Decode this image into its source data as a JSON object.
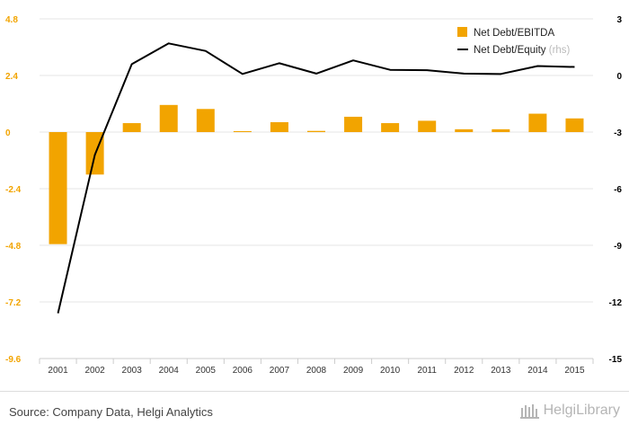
{
  "chart_data": {
    "type": "bar+line",
    "categories": [
      "2001",
      "2002",
      "2003",
      "2004",
      "2005",
      "2006",
      "2007",
      "2008",
      "2009",
      "2010",
      "2011",
      "2012",
      "2013",
      "2014",
      "2015"
    ],
    "series": [
      {
        "name": "Net Debt/EBITDA",
        "type": "bar",
        "axis": "left",
        "color": "#F2A400",
        "values": [
          -4.75,
          -1.8,
          0.38,
          1.15,
          0.98,
          0.04,
          0.42,
          0.05,
          0.65,
          0.38,
          0.48,
          0.12,
          0.12,
          0.78,
          0.58
        ]
      },
      {
        "name": "Net Debt/Equity",
        "legend_suffix": "(rhs)",
        "type": "line",
        "axis": "right",
        "color": "#000000",
        "values": [
          -12.6,
          -4.2,
          0.6,
          1.7,
          1.3,
          0.08,
          0.65,
          0.1,
          0.8,
          0.3,
          0.28,
          0.1,
          0.08,
          0.5,
          0.45
        ]
      }
    ],
    "left_axis": {
      "min": -9.6,
      "max": 4.8,
      "ticks": [
        "4.8",
        "2.4",
        "0",
        "-2.4",
        "-4.8",
        "-7.2",
        "-9.6"
      ]
    },
    "right_axis": {
      "min": -15,
      "max": 3,
      "ticks": [
        "3",
        "0",
        "-3",
        "-6",
        "-9",
        "-12",
        "-15"
      ]
    },
    "legend_position": "top-right",
    "grid": true
  },
  "footer": {
    "source": "Source: Company Data, Helgi Analytics",
    "logo_text": "HelgiLibrary"
  }
}
